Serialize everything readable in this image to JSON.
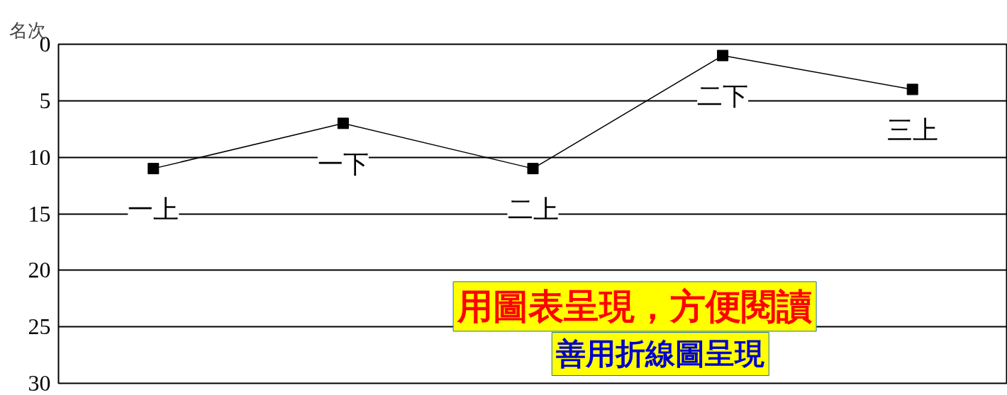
{
  "chart_data": {
    "type": "line",
    "ylabel": "名次",
    "categories": [
      "一上",
      "一下",
      "二上",
      "二下",
      "三上"
    ],
    "values": [
      11,
      7,
      11,
      1,
      4
    ],
    "color": "#000000",
    "marker": "square",
    "ylim": [
      30,
      0
    ],
    "yticks": [
      0,
      5,
      10,
      15,
      20,
      25,
      30
    ],
    "grid": "y",
    "annotations": [
      "用圖表呈現，方便閱讀",
      "善用折線圖呈現"
    ]
  }
}
